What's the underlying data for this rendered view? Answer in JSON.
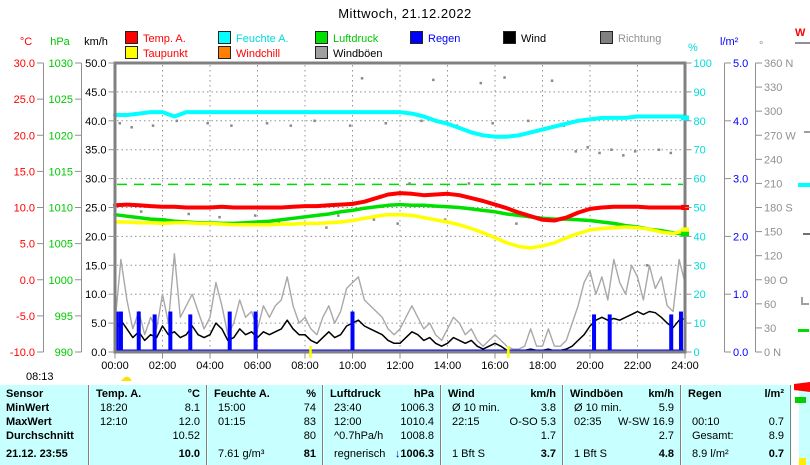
{
  "title": "Mittwoch, 21.12.2022",
  "sunrise": {
    "time": "08:13",
    "icon": "☁"
  },
  "right_clip": {
    "label": "W"
  },
  "legend": {
    "items": [
      {
        "label": "Temp. A.",
        "box": "#ff0000",
        "text": "#ff0000",
        "row": 1,
        "col": 0
      },
      {
        "label": "Feuchte A.",
        "box": "#00ffff",
        "text": "#00dcdc",
        "row": 1,
        "col": 1
      },
      {
        "label": "Luftdruck",
        "box": "#00e000",
        "text": "#00c800",
        "row": 1,
        "col": 2
      },
      {
        "label": "Regen",
        "box": "#0000ff",
        "text": "#0000ff",
        "row": 1,
        "col": 3
      },
      {
        "label": "Wind",
        "box": "#000000",
        "text": "#000000",
        "row": 1,
        "col": 4
      },
      {
        "label": "Richtung",
        "box": "#808080",
        "text": "#909090",
        "row": 1,
        "col": 5
      },
      {
        "label": "Taupunkt",
        "box": "#ffff00",
        "text": "#ff0000",
        "row": 2,
        "col": 0
      },
      {
        "label": "Windchill",
        "box": "#ff8000",
        "text": "#ff0000",
        "row": 2,
        "col": 1
      },
      {
        "label": "Windböen",
        "box": "#a0a0a0",
        "text": "#000000",
        "row": 2,
        "col": 2
      }
    ]
  },
  "chart_data": {
    "type": "line",
    "x_range_hours": [
      0,
      24
    ],
    "x_ticks": [
      "00:00",
      "02:00",
      "04:00",
      "06:00",
      "08:00",
      "10:00",
      "12:00",
      "14:00",
      "16:00",
      "18:00",
      "20:00",
      "22:00",
      "24:00"
    ],
    "axes": {
      "left": [
        {
          "unit": "°C",
          "color": "#ff0000",
          "ticks": [
            "30.0",
            "25.0",
            "20.0",
            "15.0",
            "10.0",
            "5.0",
            "0.0",
            "-5.0",
            "-10.0"
          ]
        },
        {
          "unit": "hPa",
          "color": "#00c800",
          "ticks": [
            "1030",
            "1025",
            "1020",
            "1015",
            "1010",
            "1005",
            "1000",
            "995",
            "990"
          ]
        },
        {
          "unit": "km/h",
          "color": "#000000",
          "ticks": [
            "50.0",
            "45.0",
            "40.0",
            "35.0",
            "30.0",
            "25.0",
            "20.0",
            "15.0",
            "10.0",
            "5.0",
            "0.0"
          ]
        }
      ],
      "right": [
        {
          "unit": "%",
          "color": "#00dcdc",
          "ticks": [
            "100",
            "90",
            "80",
            "70",
            "60",
            "50",
            "40",
            "30",
            "20",
            "10",
            "0"
          ]
        },
        {
          "unit": "l/m²",
          "color": "#0000ff",
          "ticks": [
            "5.0",
            "4.0",
            "3.0",
            "2.0",
            "1.0",
            "0.0"
          ]
        },
        {
          "unit": "°",
          "color": "#909090",
          "ticks": [
            "360 N",
            "330",
            "300",
            "270 W",
            "240",
            "210",
            "180 S",
            "150",
            "120",
            "90  O",
            "60",
            "30",
            "0   N"
          ]
        }
      ]
    },
    "scales": {
      "temp": [
        -10,
        30
      ],
      "hpa": [
        990,
        1030
      ],
      "kmh": [
        0,
        50
      ],
      "pct": [
        0,
        100
      ],
      "rain": [
        0,
        5
      ],
      "dir": [
        0,
        360
      ]
    },
    "reference_line": {
      "scale": "hpa",
      "value": 1013.2,
      "color": "#00dd00"
    },
    "sun_marks_hours": [
      8.22,
      16.55
    ],
    "series": [
      {
        "name": "windboeen",
        "color": "#a8a8a8",
        "width": 1.4,
        "scale": "kmh",
        "step_h": 0.25,
        "values": [
          5,
          16,
          9,
          4,
          7,
          3,
          6,
          4,
          10,
          5,
          17,
          6,
          8,
          10,
          7,
          4,
          6,
          12,
          8,
          3,
          5,
          9,
          6,
          7,
          4,
          8,
          6,
          8,
          9,
          13,
          8,
          5,
          6,
          4,
          3,
          6,
          8,
          5,
          7,
          11,
          12,
          13,
          9,
          8,
          7,
          6,
          4,
          3,
          4,
          6,
          8,
          6,
          4,
          5,
          3,
          2,
          4,
          6,
          5,
          3,
          4,
          2,
          1,
          2,
          3,
          2,
          1,
          0.5,
          0.5,
          1,
          4,
          1,
          1,
          4,
          1,
          1,
          2,
          5,
          8,
          12,
          14,
          10,
          13,
          9,
          16,
          12,
          10,
          15,
          13,
          9,
          15,
          11,
          13,
          8,
          7,
          16,
          12
        ]
      },
      {
        "name": "wind",
        "color": "#000000",
        "width": 1.5,
        "scale": "kmh",
        "step_h": 0.25,
        "values": [
          3,
          5.5,
          4,
          2.5,
          3.5,
          2,
          3,
          2.5,
          4.5,
          3,
          3.5,
          2.5,
          3,
          4.5,
          3,
          2.5,
          3,
          5,
          4,
          2,
          2.5,
          4,
          3,
          3.5,
          2.5,
          3.5,
          3,
          3.5,
          4,
          5.5,
          4,
          3,
          3,
          2,
          1.5,
          2.5,
          3.5,
          2.5,
          3,
          4.5,
          5,
          5.5,
          4.5,
          4,
          3.5,
          3,
          2,
          1.5,
          1.5,
          2.5,
          3.5,
          3,
          2,
          2.5,
          1.5,
          1,
          1.5,
          2.5,
          2,
          1.5,
          2,
          1,
          0.5,
          1,
          1.5,
          1,
          0.3,
          0.2,
          0.2,
          0.3,
          0.5,
          0.3,
          0.3,
          0.5,
          0.2,
          0.3,
          0.5,
          1,
          2,
          3,
          4.5,
          5.5,
          6,
          5.5,
          5.8,
          5.5,
          6,
          6.5,
          7,
          6.5,
          7,
          6.8,
          6,
          5,
          4.2,
          5.5,
          5.8
        ]
      },
      {
        "name": "feuchte",
        "color": "#00ffff",
        "width": 4,
        "scale": "pct",
        "step_h": 0.5,
        "values": [
          82,
          82,
          82.5,
          83,
          83,
          81.5,
          83,
          83,
          83,
          83,
          83,
          83,
          83,
          83,
          83,
          83,
          83,
          83,
          83,
          83,
          83,
          83,
          83,
          83,
          83,
          82.5,
          81.5,
          80,
          79,
          77.5,
          76,
          75,
          74.5,
          74.5,
          75,
          76,
          77,
          78,
          79,
          80,
          80.5,
          81,
          81,
          81,
          81.5,
          81.5,
          81.5,
          81.5,
          81.5
        ]
      },
      {
        "name": "luftdruck",
        "color": "#00e000",
        "width": 3.5,
        "scale": "hpa",
        "step_h": 0.5,
        "values": [
          1009.0,
          1008.8,
          1008.6,
          1008.4,
          1008.3,
          1008.1,
          1008.0,
          1007.9,
          1007.9,
          1007.8,
          1007.8,
          1007.9,
          1008.0,
          1008.1,
          1008.3,
          1008.5,
          1008.7,
          1008.9,
          1009.1,
          1009.4,
          1009.6,
          1009.9,
          1010.1,
          1010.3,
          1010.4,
          1010.3,
          1010.3,
          1010.2,
          1010.1,
          1010.0,
          1009.8,
          1009.6,
          1009.4,
          1009.1,
          1008.9,
          1008.7,
          1008.5,
          1008.4,
          1008.4,
          1008.3,
          1008.2,
          1008.0,
          1007.8,
          1007.5,
          1007.3,
          1007.0,
          1006.8,
          1006.5,
          1006.3
        ]
      },
      {
        "name": "taupunkt",
        "color": "#ffff00",
        "width": 3.5,
        "scale": "temp",
        "step_h": 0.5,
        "values": [
          8.0,
          8.0,
          7.9,
          7.9,
          7.8,
          7.9,
          7.9,
          7.8,
          7.8,
          7.7,
          7.6,
          7.6,
          7.6,
          7.6,
          7.7,
          7.7,
          7.8,
          7.8,
          7.9,
          8.0,
          8.2,
          8.5,
          8.8,
          9.0,
          9.0,
          8.9,
          8.6,
          8.3,
          8.0,
          7.6,
          7.1,
          6.5,
          5.8,
          5.1,
          4.6,
          4.4,
          4.7,
          5.1,
          5.8,
          6.4,
          6.9,
          7.1,
          7.2,
          7.3,
          7.2,
          7.0,
          6.6,
          6.4,
          6.8
        ]
      },
      {
        "name": "temperatur",
        "color": "#ff0000",
        "width": 4,
        "scale": "temp",
        "step_h": 0.5,
        "values": [
          10.3,
          10.4,
          10.3,
          10.2,
          10.1,
          10.1,
          10.0,
          10.0,
          10.0,
          10.1,
          10.0,
          10.0,
          10.0,
          10.0,
          10.0,
          10.1,
          10.2,
          10.2,
          10.3,
          10.4,
          10.5,
          10.8,
          11.3,
          11.8,
          12.0,
          11.9,
          11.7,
          11.8,
          11.9,
          11.7,
          11.3,
          10.9,
          10.4,
          9.9,
          9.3,
          8.8,
          8.3,
          8.2,
          8.6,
          9.3,
          9.8,
          10.0,
          10.1,
          10.1,
          10.1,
          10.0,
          10.0,
          10.0,
          10.0
        ]
      }
    ],
    "rain_bars": {
      "name": "regen",
      "color": "#0000ff",
      "scale": "rain",
      "points": [
        [
          0.08,
          0.7
        ],
        [
          0.25,
          0.7
        ],
        [
          1.0,
          0.7
        ],
        [
          1.67,
          0.65
        ],
        [
          2.33,
          0.7
        ],
        [
          3.17,
          0.65
        ],
        [
          4.83,
          0.7
        ],
        [
          5.92,
          0.7
        ],
        [
          10.0,
          0.7
        ],
        [
          20.17,
          0.65
        ],
        [
          20.83,
          0.65
        ],
        [
          23.42,
          0.65
        ],
        [
          23.83,
          0.7
        ]
      ]
    },
    "direction_dots": {
      "name": "richtung",
      "color": "#8a8a8a",
      "scale": "dir",
      "points": [
        [
          0.2,
          285
        ],
        [
          0.7,
          280
        ],
        [
          1.1,
          175
        ],
        [
          1.6,
          282
        ],
        [
          2.1,
          165
        ],
        [
          2.6,
          288
        ],
        [
          3.1,
          172
        ],
        [
          3.4,
          160
        ],
        [
          3.9,
          285
        ],
        [
          4.4,
          168
        ],
        [
          4.9,
          282
        ],
        [
          5.4,
          158
        ],
        [
          5.9,
          170
        ],
        [
          6.4,
          285
        ],
        [
          6.9,
          162
        ],
        [
          7.4,
          282
        ],
        [
          7.9,
          168
        ],
        [
          8.4,
          288
        ],
        [
          8.9,
          155
        ],
        [
          9.4,
          170
        ],
        [
          9.9,
          282
        ],
        [
          10.4,
          341
        ],
        [
          10.9,
          165
        ],
        [
          11.4,
          285
        ],
        [
          11.9,
          160
        ],
        [
          12.4,
          210
        ],
        [
          12.9,
          288
        ],
        [
          13.4,
          339
        ],
        [
          13.9,
          165
        ],
        [
          14.4,
          282
        ],
        [
          14.9,
          210
        ],
        [
          15.4,
          335
        ],
        [
          15.9,
          285
        ],
        [
          16.4,
          342
        ],
        [
          16.9,
          160
        ],
        [
          17.4,
          288
        ],
        [
          17.9,
          210
        ],
        [
          18.4,
          338
        ],
        [
          18.9,
          282
        ],
        [
          19.4,
          250
        ],
        [
          19.9,
          255
        ],
        [
          20.4,
          248
        ],
        [
          20.9,
          252
        ],
        [
          21.4,
          245
        ],
        [
          21.9,
          250
        ],
        [
          22.4,
          108
        ],
        [
          22.9,
          252
        ],
        [
          23.4,
          248
        ],
        [
          23.9,
          182
        ]
      ]
    },
    "end_markers": [
      {
        "scale": "pct",
        "value": 81,
        "color": "#00ffff"
      },
      {
        "scale": "temp",
        "value": 10.0,
        "color": "#ff0000"
      },
      {
        "scale": "temp",
        "value": 6.9,
        "color": "#ffff00"
      },
      {
        "scale": "hpa",
        "value": 1006.3,
        "color": "#00e000"
      }
    ]
  },
  "table": {
    "row_labels": [
      "Sensor",
      "MinWert",
      "MaxWert",
      "Durchschnitt",
      "21.12. 23:55"
    ],
    "groups": [
      {
        "name": "Temp. A.",
        "unit": "°C",
        "min": [
          "18:20",
          "8.1"
        ],
        "max": [
          "12:10",
          "12.0"
        ],
        "avg": [
          "",
          "10.52"
        ],
        "now": [
          "",
          "10.0"
        ]
      },
      {
        "name": "Feuchte A.",
        "unit": "%",
        "min": [
          "15:00",
          "74"
        ],
        "max": [
          "01:15",
          "83"
        ],
        "avg": [
          "",
          "80"
        ],
        "now": [
          "7.61 g/m³",
          "81"
        ]
      },
      {
        "name": "Luftdruck",
        "unit": "hPa",
        "min": [
          "23:40",
          "1006.3"
        ],
        "max": [
          "12:00",
          "1010.4"
        ],
        "avg": [
          "^0.7hPa/h",
          "1008.8"
        ],
        "now": [
          "regnerisch",
          "↓1006.3"
        ]
      },
      {
        "name": "Wind",
        "unit": "km/h",
        "min": [
          "Ø 10 min.",
          "3.8"
        ],
        "max": [
          "22:15",
          "O-SO 5.3"
        ],
        "avg": [
          "",
          "1.7"
        ],
        "now": [
          "1 Bft S",
          "3.7"
        ]
      },
      {
        "name": "Windböen",
        "unit": "km/h",
        "min": [
          "Ø 10 min.",
          "5.9"
        ],
        "max": [
          "02:35",
          "W-SW 16.9"
        ],
        "avg": [
          "",
          "2.7"
        ],
        "now": [
          "1 Bft S",
          "4.8"
        ]
      },
      {
        "name": "Regen",
        "unit": "l/m²",
        "min": [
          "",
          ""
        ],
        "max": [
          "00:10",
          "0.7"
        ],
        "avg": [
          "Gesamt:",
          "8.9"
        ],
        "now": [
          "8.9 l/m²",
          "0.7"
        ]
      }
    ]
  }
}
